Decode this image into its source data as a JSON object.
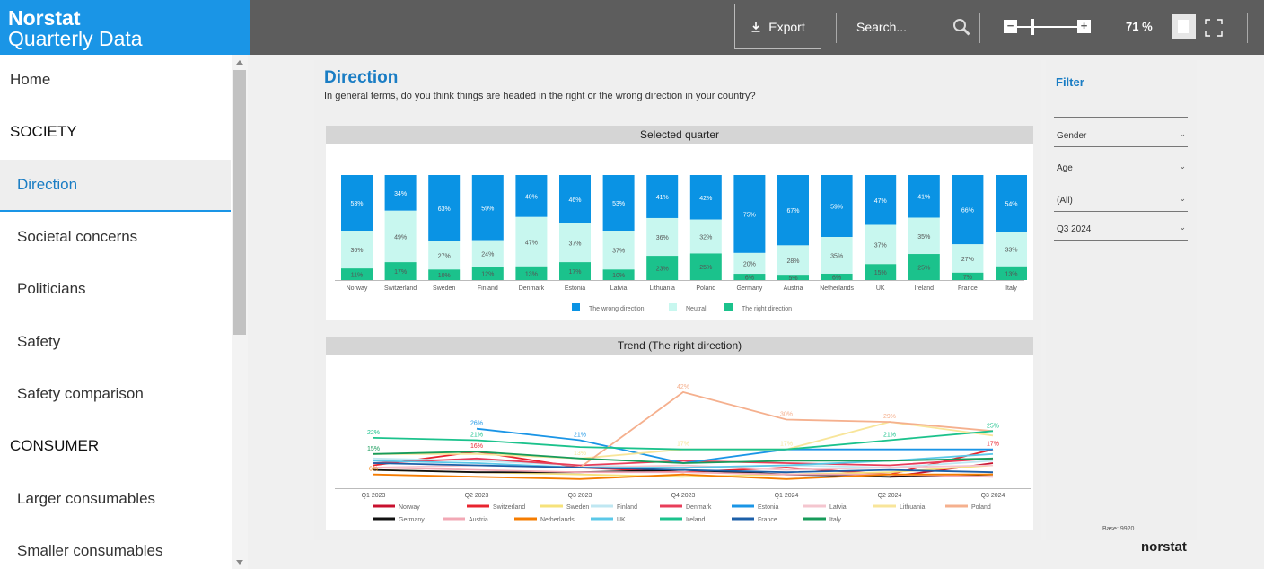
{
  "app": {
    "brand_line1": "Norstat",
    "brand_line2": "Quarterly Data"
  },
  "toolbar": {
    "export_label": "Export",
    "search_placeholder": "Search...",
    "zoom_level": "71 %"
  },
  "sidebar": {
    "items": [
      {
        "label": "Home",
        "kind": "link"
      },
      {
        "label": "SOCIETY",
        "kind": "heading"
      },
      {
        "label": "Direction",
        "kind": "active"
      },
      {
        "label": "Societal concerns",
        "kind": "link"
      },
      {
        "label": "Politicians",
        "kind": "link"
      },
      {
        "label": "Safety",
        "kind": "link"
      },
      {
        "label": "Safety comparison",
        "kind": "link"
      },
      {
        "label": "CONSUMER",
        "kind": "heading"
      },
      {
        "label": "Larger consumables",
        "kind": "link"
      },
      {
        "label": "Smaller consumables",
        "kind": "link"
      }
    ]
  },
  "page": {
    "title": "Direction",
    "question": "In general terms, do you think things are headed in the right or the wrong direction in your country?"
  },
  "filter": {
    "title": "Filter",
    "dropdowns": [
      "Gender",
      "Age",
      "(All)",
      "Q3 2024"
    ],
    "base": "Base: 9920",
    "logo": "norstat"
  },
  "colors": {
    "wrong": "#0a93e4",
    "neutral": "#c8f7ef",
    "right": "#1bc28c",
    "accent": "#1a95e6"
  },
  "chart_data": [
    {
      "type": "bar",
      "title": "Selected quarter",
      "stacked": true,
      "categories": [
        "Norway",
        "Switzerland",
        "Sweden",
        "Finland",
        "Denmark",
        "Estonia",
        "Latvia",
        "Lithuania",
        "Poland",
        "Germany",
        "Austria",
        "Netherlands",
        "UK",
        "Ireland",
        "France",
        "Italy"
      ],
      "series": [
        {
          "name": "The right direction",
          "values": [
            11,
            17,
            10,
            12,
            13,
            17,
            10,
            23,
            25,
            6,
            5,
            6,
            15,
            25,
            7,
            13
          ]
        },
        {
          "name": "Neutral",
          "values": [
            36,
            49,
            27,
            24,
            47,
            37,
            37,
            36,
            32,
            20,
            28,
            35,
            37,
            35,
            27,
            33
          ]
        },
        {
          "name": "The wrong direction",
          "values": [
            53,
            34,
            63,
            59,
            40,
            46,
            53,
            41,
            42,
            75,
            67,
            59,
            47,
            41,
            66,
            54
          ]
        }
      ],
      "labels": [
        {
          "wrong": "53%",
          "neutral": "36%",
          "right": "11%"
        },
        {
          "wrong": "34%",
          "neutral": "49%",
          "right": "17%"
        },
        {
          "wrong": "63%",
          "neutral": "27%",
          "right": "10%"
        },
        {
          "wrong": "59%",
          "neutral": "24%",
          "right": "12%"
        },
        {
          "wrong": "40%",
          "neutral": "47%",
          "right": "13%"
        },
        {
          "wrong": "46%",
          "neutral": "37%",
          "right": "17%"
        },
        {
          "wrong": "53%",
          "neutral": "37%",
          "right": "10%"
        },
        {
          "wrong": "41%",
          "neutral": "36%",
          "right": "23%"
        },
        {
          "wrong": "42%",
          "neutral": "32%",
          "right": "25%"
        },
        {
          "wrong": "75%",
          "neutral": "20%",
          "right": "6%"
        },
        {
          "wrong": "67%",
          "neutral": "28%",
          "right": "5%"
        },
        {
          "wrong": "59%",
          "neutral": "35%",
          "right": "6%"
        },
        {
          "wrong": "47%",
          "neutral": "37%",
          "right": "15%"
        },
        {
          "wrong": "41%",
          "neutral": "35%",
          "right": "25%"
        },
        {
          "wrong": "66%",
          "neutral": "27%",
          "right": "7%"
        },
        {
          "wrong": "54%",
          "neutral": "33%",
          "right": "13%"
        }
      ],
      "legend": [
        "The wrong direction",
        "Neutral",
        "The right direction"
      ],
      "ylim": [
        0,
        100
      ]
    },
    {
      "type": "line",
      "title": "Trend (The right direction)",
      "x": [
        "Q1 2023",
        "Q2 2023",
        "Q3 2023",
        "Q4 2023",
        "Q1 2024",
        "Q2 2024",
        "Q3 2024"
      ],
      "ylim": [
        0,
        45
      ],
      "series": [
        {
          "name": "Norway",
          "color": "#c8102e",
          "values": [
            null,
            null,
            null,
            null,
            null,
            5,
            11
          ]
        },
        {
          "name": "Switzerland",
          "color": "#e8242f",
          "values": [
            10,
            16,
            9,
            7,
            9,
            6,
            17
          ]
        },
        {
          "name": "Sweden",
          "color": "#f6e27a",
          "values": [
            8,
            7,
            6,
            5,
            6,
            7,
            10
          ]
        },
        {
          "name": "Finland",
          "color": "#bfe7f2",
          "values": [
            13,
            12,
            10,
            9,
            10,
            9,
            12
          ]
        },
        {
          "name": "Denmark",
          "color": "#e83e5a",
          "values": [
            11,
            13,
            10,
            12,
            11,
            10,
            13
          ]
        },
        {
          "name": "Estonia",
          "color": "#1a95e6",
          "values": [
            null,
            26,
            21,
            11,
            17,
            17,
            17
          ]
        },
        {
          "name": "Latvia",
          "color": "#f4c6cf",
          "values": [
            9,
            10,
            9,
            10,
            8,
            9,
            10
          ]
        },
        {
          "name": "Lithuania",
          "color": "#f8e59a",
          "values": [
            15,
            15,
            13,
            17,
            17,
            29,
            23
          ]
        },
        {
          "name": "Poland",
          "color": "#f5b08e",
          "values": [
            null,
            null,
            9,
            42,
            30,
            29,
            25
          ]
        },
        {
          "name": "Germany",
          "color": "#111111",
          "values": [
            8,
            7,
            7,
            8,
            6,
            5,
            6
          ]
        },
        {
          "name": "Austria",
          "color": "#f2a8b5",
          "values": [
            9,
            8,
            7,
            7,
            6,
            6,
            5
          ]
        },
        {
          "name": "Netherlands",
          "color": "#f57c00",
          "values": [
            6,
            5,
            4,
            6,
            4,
            6,
            6
          ]
        },
        {
          "name": "UK",
          "color": "#5bc8e8",
          "values": [
            12,
            11,
            9,
            9,
            10,
            12,
            15
          ]
        },
        {
          "name": "Ireland",
          "color": "#1bc28c",
          "values": [
            22,
            21,
            18,
            17,
            17,
            21,
            25
          ]
        },
        {
          "name": "France",
          "color": "#1c5fa8",
          "values": [
            11,
            10,
            9,
            8,
            7,
            8,
            7
          ]
        },
        {
          "name": "Italy",
          "color": "#179b5a",
          "values": [
            15,
            16,
            13,
            11,
            12,
            12,
            13
          ]
        }
      ],
      "point_labels": [
        {
          "series": "Estonia",
          "x": "Q2 2023",
          "text": "26%"
        },
        {
          "series": "Estonia",
          "x": "Q3 2023",
          "text": "21%"
        },
        {
          "series": "Ireland",
          "x": "Q1 2023",
          "text": "22%"
        },
        {
          "series": "Ireland",
          "x": "Q2 2023",
          "text": "21%"
        },
        {
          "series": "Poland",
          "x": "Q4 2023",
          "text": "42%"
        },
        {
          "series": "Poland",
          "x": "Q1 2024",
          "text": "30%"
        },
        {
          "series": "Poland",
          "x": "Q2 2024",
          "text": "29%"
        },
        {
          "series": "Ireland",
          "x": "Q3 2024",
          "text": "25%"
        },
        {
          "series": "Lithuania",
          "x": "Q4 2023",
          "text": "17%"
        },
        {
          "series": "Lithuania",
          "x": "Q1 2024",
          "text": "17%"
        },
        {
          "series": "Ireland",
          "x": "Q2 2024",
          "text": "21%"
        },
        {
          "series": "Italy",
          "x": "Q1 2023",
          "text": "15%"
        },
        {
          "series": "Switzerland",
          "x": "Q2 2023",
          "text": "16%"
        },
        {
          "series": "Lithuania",
          "x": "Q3 2023",
          "text": "13%"
        },
        {
          "series": "Netherlands",
          "x": "Q1 2023",
          "text": "6%"
        },
        {
          "series": "Switzerland",
          "x": "Q3 2024",
          "text": "17%"
        }
      ]
    }
  ]
}
